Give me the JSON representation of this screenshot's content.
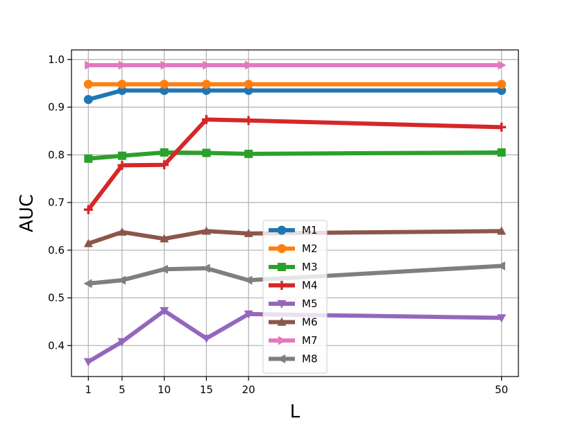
{
  "chart_data": {
    "type": "line",
    "title": "",
    "xlabel": "L",
    "ylabel": "AUC",
    "x": [
      1,
      5,
      10,
      15,
      20,
      50
    ],
    "x_tick_labels": [
      "1",
      "5",
      "10",
      "15",
      "20",
      "50"
    ],
    "xlim": [
      -1,
      52
    ],
    "ylim": [
      0.335,
      1.02
    ],
    "y_ticks": [
      0.4,
      0.5,
      0.6,
      0.7,
      0.8,
      0.9,
      1.0
    ],
    "y_tick_labels": [
      "0.4",
      "0.5",
      "0.6",
      "0.7",
      "0.8",
      "0.9",
      "1.0"
    ],
    "grid": true,
    "legend_position": "lower center",
    "series": [
      {
        "name": "M1",
        "color": "#1f77b4",
        "marker": "circle",
        "values": [
          0.916,
          0.935,
          0.935,
          0.935,
          0.935,
          0.935
        ]
      },
      {
        "name": "M2",
        "color": "#ff7f0e",
        "marker": "circle",
        "values": [
          0.948,
          0.948,
          0.948,
          0.948,
          0.948,
          0.948
        ]
      },
      {
        "name": "M3",
        "color": "#2ca02c",
        "marker": "square",
        "values": [
          0.792,
          0.798,
          0.805,
          0.804,
          0.802,
          0.805
        ]
      },
      {
        "name": "M4",
        "color": "#d62728",
        "marker": "plus",
        "values": [
          0.685,
          0.778,
          0.779,
          0.874,
          0.872,
          0.858
        ]
      },
      {
        "name": "M5",
        "color": "#9467bd",
        "marker": "triangle-down",
        "values": [
          0.366,
          0.408,
          0.473,
          0.415,
          0.466,
          0.458
        ]
      },
      {
        "name": "M6",
        "color": "#8c564b",
        "marker": "triangle-up",
        "values": [
          0.614,
          0.638,
          0.624,
          0.64,
          0.635,
          0.64
        ]
      },
      {
        "name": "M7",
        "color": "#e377c2",
        "marker": "triangle-right",
        "values": [
          0.988,
          0.988,
          0.988,
          0.988,
          0.988,
          0.988
        ]
      },
      {
        "name": "M8",
        "color": "#7f7f7f",
        "marker": "triangle-left",
        "values": [
          0.53,
          0.537,
          0.56,
          0.562,
          0.537,
          0.567
        ]
      }
    ]
  }
}
